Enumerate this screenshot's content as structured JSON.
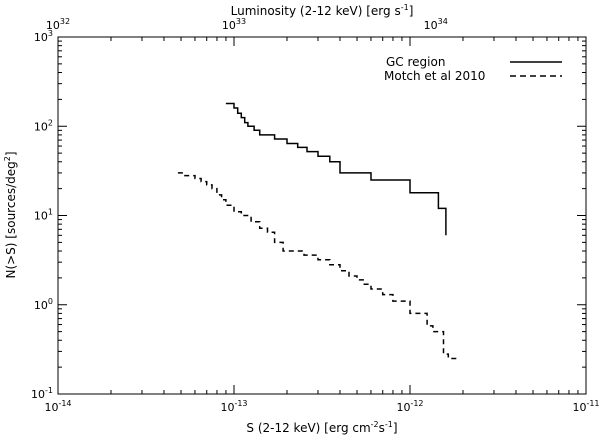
{
  "chart_data": {
    "type": "line",
    "x_scale": "log",
    "y_scale": "log",
    "xlim": [
      1e-14,
      1e-11
    ],
    "ylim": [
      0.1,
      1000
    ],
    "xlabel_base": "S (2-12 keV) [erg cm",
    "xlabel_exp1": "-2",
    "xlabel_mid": "s",
    "xlabel_exp2": "-1",
    "xlabel_end": "]",
    "ylabel_base": "N(>S) [sources/deg",
    "ylabel_exp": "2",
    "ylabel_end": "]",
    "top_label_base": "Luminosity (2-12 keV) [erg s",
    "top_label_exp": "-1",
    "top_label_end": "]",
    "x_ticks": [
      {
        "value": 1e-14,
        "base": "10",
        "exp": "-14"
      },
      {
        "value": 1e-13,
        "base": "10",
        "exp": "-13"
      },
      {
        "value": 1e-12,
        "base": "10",
        "exp": "-12"
      },
      {
        "value": 1e-11,
        "base": "10",
        "exp": "-11"
      }
    ],
    "y_ticks": [
      {
        "value": 0.1,
        "base": "10",
        "exp": "-1"
      },
      {
        "value": 1,
        "base": "10",
        "exp": "0"
      },
      {
        "value": 10,
        "base": "10",
        "exp": "1"
      },
      {
        "value": 100,
        "base": "10",
        "exp": "2"
      },
      {
        "value": 1000,
        "base": "10",
        "exp": "3"
      }
    ],
    "top_ticks": [
      {
        "flux": 1e-14,
        "base": "10",
        "exp": "32"
      },
      {
        "flux": 1e-13,
        "base": "10",
        "exp": "33"
      },
      {
        "flux": 1.4e-12,
        "base": "10",
        "exp": "34"
      }
    ],
    "legend_position": "top-right",
    "series": [
      {
        "name": "GC region",
        "style": "solid",
        "x": [
          9e-14,
          1e-13,
          1.05e-13,
          1.1e-13,
          1.15e-13,
          1.2e-13,
          1.3e-13,
          1.4e-13,
          1.7e-13,
          2e-13,
          2.3e-13,
          2.6e-13,
          3e-13,
          3.5e-13,
          4e-13,
          6e-13,
          1e-12,
          1.45e-12,
          1.6e-12
        ],
        "y": [
          180,
          160,
          140,
          125,
          110,
          100,
          90,
          80,
          72,
          64,
          58,
          52,
          46,
          40,
          30,
          25,
          18,
          12,
          6
        ]
      },
      {
        "name": "Motch et al 2010",
        "style": "dashed",
        "x": [
          4.8e-14,
          5.2e-14,
          6e-14,
          6.5e-14,
          7e-14,
          7.5e-14,
          8e-14,
          8.5e-14,
          9e-14,
          1e-13,
          1.1e-13,
          1.25e-13,
          1.4e-13,
          1.55e-13,
          1.7e-13,
          1.9e-13,
          2.5e-13,
          3e-13,
          3.5e-13,
          4e-13,
          4.5e-13,
          5e-13,
          5.5e-13,
          6e-13,
          7e-13,
          8e-13,
          1e-12,
          1.25e-12,
          1.35e-12,
          1.55e-12,
          1.65e-12,
          1.85e-12
        ],
        "y": [
          30,
          28,
          26,
          24,
          22,
          20,
          17,
          15,
          13,
          11,
          10,
          8.5,
          7.2,
          6.5,
          5,
          4,
          3.6,
          3.2,
          2.8,
          2.4,
          2.1,
          1.9,
          1.7,
          1.5,
          1.3,
          1.1,
          0.8,
          0.58,
          0.5,
          0.28,
          0.25,
          0.25
        ]
      }
    ]
  }
}
